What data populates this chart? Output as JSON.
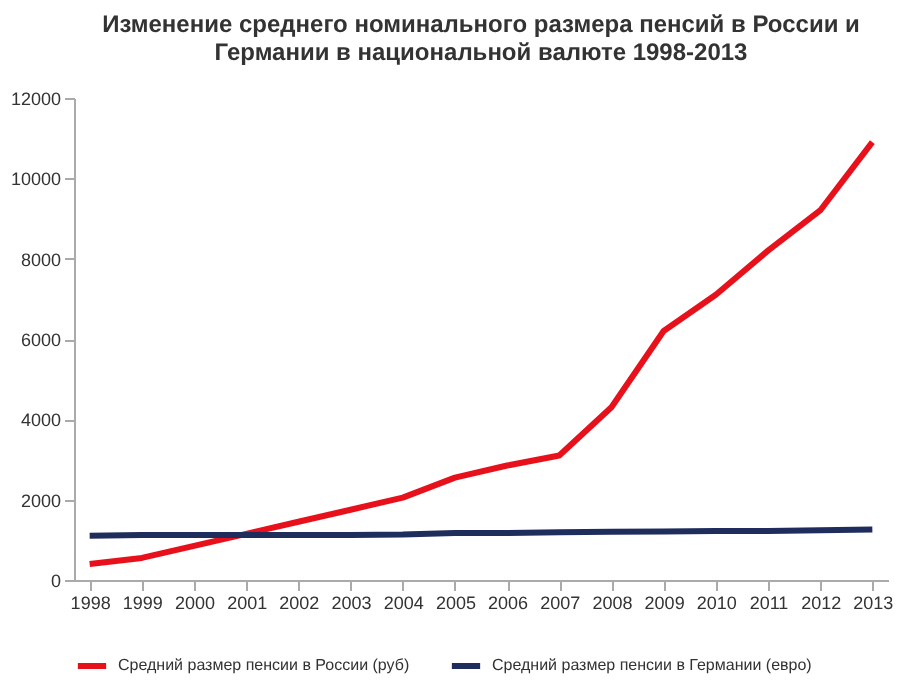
{
  "chart_data": {
    "type": "line",
    "title": "Изменение среднего номинального размера пенсий в России и Германии в национальной валюте 1998-2013",
    "categories": [
      "1998",
      "1999",
      "2000",
      "2001",
      "2002",
      "2003",
      "2004",
      "2005",
      "2006",
      "2007",
      "2008",
      "2009",
      "2010",
      "2011",
      "2012",
      "2013"
    ],
    "series": [
      {
        "name": "Средний размер пенсии в России (руб)",
        "color": "#e8101a",
        "values": [
          400,
          550,
          850,
          1150,
          1450,
          1750,
          2050,
          2550,
          2850,
          3100,
          4300,
          6200,
          7100,
          8200,
          9200,
          10900
        ]
      },
      {
        "name": "Средний размер пенсии в Германии (евро)",
        "color": "#1f2d5c",
        "values": [
          1100,
          1120,
          1120,
          1120,
          1120,
          1120,
          1130,
          1170,
          1170,
          1190,
          1200,
          1210,
          1220,
          1220,
          1240,
          1260
        ]
      }
    ],
    "ylim": [
      0,
      12000
    ],
    "yticks": [
      0,
      2000,
      4000,
      6000,
      8000,
      10000,
      12000
    ],
    "grid": false,
    "legend": "bottom",
    "marker": "none",
    "line_style": "solid"
  }
}
